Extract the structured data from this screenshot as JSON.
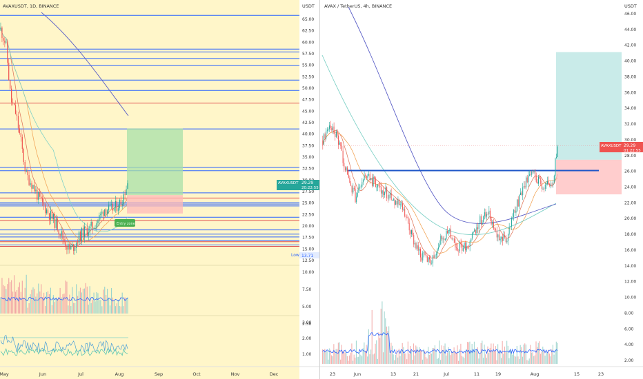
{
  "left_panel": {
    "header": "AVAXUSDT, 1D, BINANCE",
    "currency_label": "USDT",
    "price_badge_symbol": "AVAXUSDT",
    "price_badge_value": "29.29",
    "price_badge_timer": "20:22:55",
    "low_label": "Low",
    "low_value": "13.71",
    "green_tag_text": "Entry zone",
    "price_ticks": [
      "65.00",
      "62.50",
      "60.00",
      "57.50",
      "55.00",
      "52.50",
      "50.00",
      "47.50",
      "45.00",
      "42.50",
      "40.00",
      "37.50",
      "35.00",
      "32.50",
      "30.00",
      "27.50",
      "25.00",
      "22.50",
      "20.00",
      "17.50",
      "15.00",
      "12.50"
    ],
    "volume_ticks": [
      "10.00",
      "7.50",
      "5.00",
      "2.50"
    ],
    "osc_ticks": [
      "3.00",
      "2.00",
      "1.00"
    ],
    "time_ticks": [
      "May",
      "Jun",
      "Jul",
      "Aug",
      "Sep",
      "Oct",
      "Nov",
      "Dec"
    ]
  },
  "right_panel": {
    "header": "AVAX / TetherUS, 4h, BINANCE",
    "currency_label": "USDT",
    "price_badge_symbol": "AVAXUSDT",
    "price_badge_value": "29.29",
    "price_badge_timer": "01:22:55",
    "price_ticks": [
      "46.00",
      "44.00",
      "42.00",
      "40.00",
      "38.00",
      "36.00",
      "34.00",
      "32.00",
      "30.00",
      "28.00",
      "26.00",
      "24.00",
      "22.00",
      "20.00",
      "18.00",
      "16.00",
      "14.00",
      "12.00",
      "10.00",
      "8.00",
      "6.00",
      "4.00",
      "2.00"
    ],
    "time_ticks": [
      "23",
      "Jun",
      "13",
      "21",
      "Jul",
      "11",
      "19",
      "Aug",
      "15",
      "23"
    ]
  },
  "colors": {
    "left_bg": "#fff6c9",
    "blue_level": "#2962ff",
    "red_level": "#e05050",
    "profit_zone": "#a8e0a8",
    "profit_zone_right": "#b2e3e0",
    "loss_zone": "#ffb8b8",
    "candle_up": "#26a69a",
    "candle_down": "#ef5350",
    "badge": "#26a69a",
    "badge_right": "#ef5350"
  },
  "chart_data": [
    {
      "type": "candlestick",
      "title": "AVAXUSDT, 1D, BINANCE",
      "x": [
        "May",
        "Jun",
        "Jul",
        "Aug",
        "Sep",
        "Oct",
        "Nov",
        "Dec"
      ],
      "ylim": [
        12.5,
        66.5
      ],
      "last_price": 29.29,
      "low": 13.71,
      "horizontal_levels_blue": [
        65.0,
        57.8,
        57.2,
        55.8,
        54.3,
        51.2,
        49.0,
        40.8,
        32.6,
        31.9,
        27.2,
        25.1,
        24.8,
        24.4,
        22.0,
        19.3,
        18.4,
        17.8,
        17.0,
        16.1
      ],
      "horizontal_levels_red": [
        46.3,
        26.1,
        21.3,
        16.8,
        15.8
      ],
      "position": {
        "entry": 26.7,
        "target": 40.9,
        "stop": 22.8
      },
      "path": [
        [
          0,
          62
        ],
        [
          4,
          59
        ],
        [
          8,
          47
        ],
        [
          12,
          44
        ],
        [
          16,
          38
        ],
        [
          20,
          31
        ],
        [
          25,
          29
        ],
        [
          30,
          26
        ],
        [
          35,
          24
        ],
        [
          40,
          22
        ],
        [
          45,
          20
        ],
        [
          50,
          17
        ],
        [
          54,
          15
        ],
        [
          58,
          16
        ],
        [
          62,
          18
        ],
        [
          66,
          19
        ],
        [
          70,
          19.5
        ],
        [
          74,
          20.5
        ],
        [
          78,
          22
        ],
        [
          82,
          24
        ],
        [
          86,
          23.5
        ],
        [
          90,
          24
        ],
        [
          95,
          25.5
        ],
        [
          100,
          29.3
        ]
      ]
    },
    {
      "type": "candlestick",
      "title": "AVAX / TetherUS, 4h, BINANCE",
      "x": [
        "23",
        "Jun",
        "13",
        "21",
        "Jul",
        "11",
        "19",
        "Aug",
        "15",
        "23"
      ],
      "ylim": [
        0.6,
        47.2
      ],
      "last_price": 29.29,
      "horizontal_levels_blue": [
        26.1
      ],
      "position": {
        "entry": 27.5,
        "target": 41.5,
        "stop": 23.0
      },
      "path": [
        [
          0,
          30
        ],
        [
          3,
          32
        ],
        [
          6,
          30.5
        ],
        [
          10,
          26
        ],
        [
          14,
          22.5
        ],
        [
          18,
          25.5
        ],
        [
          22,
          24.5
        ],
        [
          26,
          23.5
        ],
        [
          30,
          22.5
        ],
        [
          34,
          21
        ],
        [
          38,
          17.5
        ],
        [
          42,
          15
        ],
        [
          46,
          14.5
        ],
        [
          50,
          17
        ],
        [
          54,
          18
        ],
        [
          58,
          16
        ],
        [
          62,
          16.5
        ],
        [
          66,
          19
        ],
        [
          70,
          21
        ],
        [
          74,
          18
        ],
        [
          78,
          17
        ],
        [
          82,
          21
        ],
        [
          86,
          24.5
        ],
        [
          90,
          25.5
        ],
        [
          94,
          24
        ],
        [
          98,
          24.5
        ],
        [
          100,
          29.3
        ]
      ]
    }
  ]
}
